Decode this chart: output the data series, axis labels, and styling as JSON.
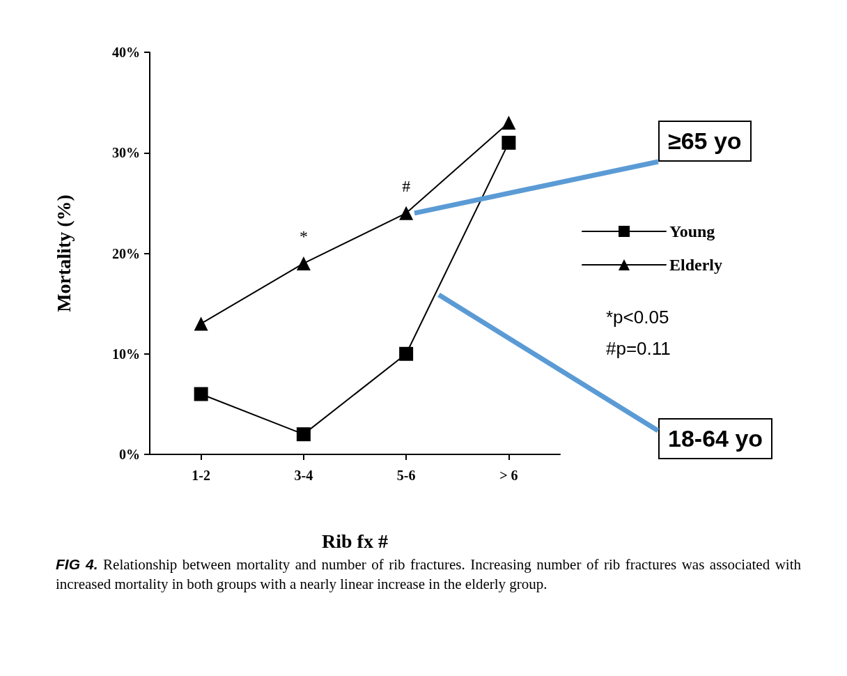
{
  "chart_data": {
    "type": "line",
    "xlabel": "Rib fx #",
    "ylabel": "Mortality (%)",
    "categories": [
      "1-2",
      "3-4",
      "5-6",
      "> 6"
    ],
    "series": [
      {
        "name": "Young",
        "color": "#000000",
        "marker": "square",
        "values": [
          6,
          2,
          10,
          31
        ]
      },
      {
        "name": "Elderly",
        "color": "#000000",
        "marker": "triangle",
        "values": [
          13,
          19,
          24,
          33
        ]
      }
    ],
    "ylim": [
      0,
      40
    ],
    "yticks": [
      {
        "value": 0,
        "label": "0%"
      },
      {
        "value": 10,
        "label": "10%"
      },
      {
        "value": 20,
        "label": "20%"
      },
      {
        "value": 30,
        "label": "30%"
      },
      {
        "value": 40,
        "label": "40%"
      }
    ],
    "grid": false,
    "legend": "right",
    "line_style": "solid",
    "annotations": [
      {
        "text": "*",
        "x": "3-4",
        "y": 19
      },
      {
        "text": "#",
        "x": "5-6",
        "y": 24
      },
      "*p<0.05",
      "#p=0.11",
      "≥65 yo",
      "18-64 yo",
      "FIG 4. Relationship between mortality and number of rib fractures. Increasing number of rib fractures was associated with increased mortality in both groups with a nearly linear increase in the elderly group."
    ]
  }
}
